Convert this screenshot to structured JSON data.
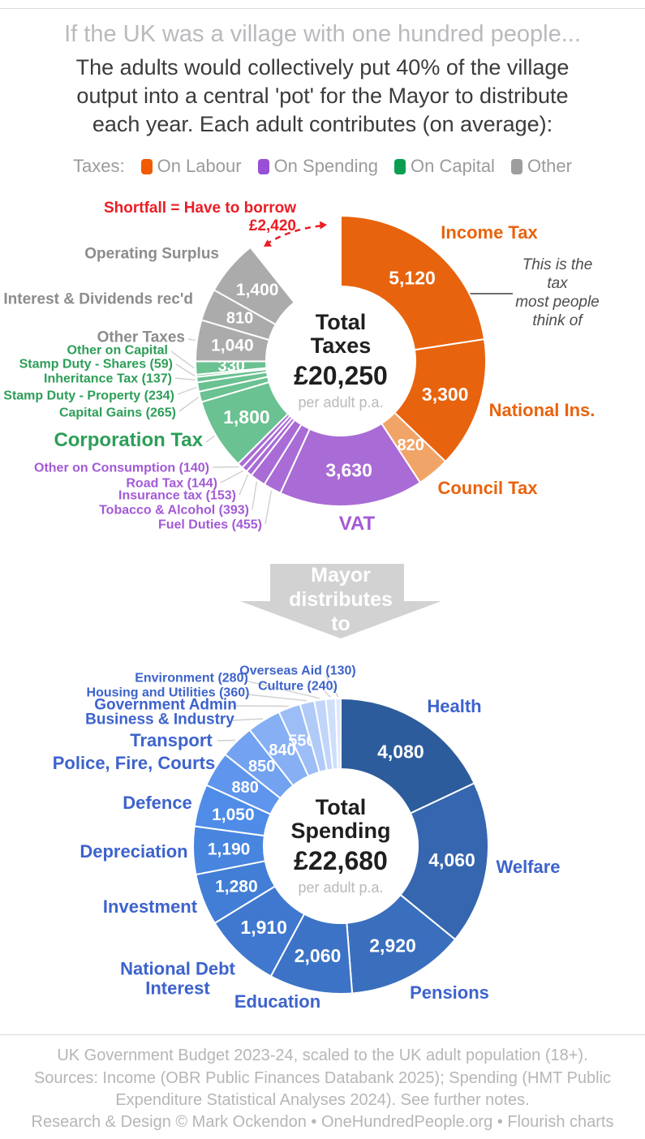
{
  "header": {
    "title": "If the UK was a village with one hundred people...",
    "subtitle": "The adults would collectively put 40% of the village\noutput into a central 'pot' for the Mayor to distribute\neach year. Each adult contributes (on average):"
  },
  "legend": {
    "prefix": "Taxes:",
    "items": [
      {
        "label": "On Labour",
        "color": "#F25B05"
      },
      {
        "label": "On Spending",
        "color": "#9750D6"
      },
      {
        "label": "On Capital",
        "color": "#0B9E51"
      },
      {
        "label": "Other",
        "color": "#9E9E9E"
      }
    ]
  },
  "chart_data": [
    {
      "type": "pie",
      "title": "Total Taxes",
      "center": {
        "title": "Total\nTaxes",
        "amount": "£20,250",
        "note": "per adult p.a."
      },
      "unit": "pounds per adult per year",
      "shortfall_gap": {
        "text": "Shortfall = Have to borrow\n£2,420",
        "value": 2420,
        "color": "#EC1C24"
      },
      "income_note": {
        "text": "This is the tax\nmost people\nthink of"
      },
      "slices": [
        {
          "label": "Income Tax",
          "value": 5120,
          "display": "5,120",
          "color": "#E8630D",
          "label_color": "#E8630D",
          "show_value_inside": true
        },
        {
          "label": "National Ins.",
          "value": 3300,
          "display": "3,300",
          "color": "#E8630D",
          "label_color": "#E8630D",
          "show_value_inside": true
        },
        {
          "label": "Council Tax",
          "value": 820,
          "display": "820",
          "color": "#F1A467",
          "label_color": "#E8630D",
          "show_value_inside": true
        },
        {
          "label": "VAT",
          "value": 3630,
          "display": "3,630",
          "color": "#A96BD5",
          "label_color": "#A35AD6",
          "show_value_inside": true
        },
        {
          "label": "Fuel Duties",
          "value": 455,
          "display": "455",
          "color": "#A96BD5",
          "label_color": "#A35AD6",
          "show_value_inside": false
        },
        {
          "label": "Tobacco & Alcohol",
          "value": 393,
          "display": "393",
          "color": "#A96BD5",
          "label_color": "#A35AD6",
          "show_value_inside": false
        },
        {
          "label": "Insurance tax",
          "value": 153,
          "display": "153",
          "color": "#A96BD5",
          "label_color": "#A35AD6",
          "show_value_inside": false
        },
        {
          "label": "Road Tax",
          "value": 144,
          "display": "144",
          "color": "#A96BD5",
          "label_color": "#A35AD6",
          "show_value_inside": false
        },
        {
          "label": "Other on Consumption",
          "value": 140,
          "display": "140",
          "color": "#A96BD5",
          "label_color": "#A35AD6",
          "show_value_inside": false
        },
        {
          "label": "Corporation Tax",
          "value": 1800,
          "display": "1,800",
          "color": "#6AC191",
          "label_color": "#2D9E58",
          "show_value_inside": true
        },
        {
          "label": "Capital Gains",
          "value": 265,
          "display": "265",
          "color": "#6AC191",
          "label_color": "#2D9E58",
          "show_value_inside": false
        },
        {
          "label": "Stamp Duty - Property",
          "value": 234,
          "display": "234",
          "color": "#6AC191",
          "label_color": "#2D9E58",
          "show_value_inside": false
        },
        {
          "label": "Inheritance Tax",
          "value": 137,
          "display": "137",
          "color": "#6AC191",
          "label_color": "#2D9E58",
          "show_value_inside": false
        },
        {
          "label": "Stamp Duty - Shares",
          "value": 59,
          "display": "59",
          "color": "#6AC191",
          "label_color": "#2D9E58",
          "show_value_inside": false
        },
        {
          "label": "Other on Capital",
          "value": 330,
          "display": "330",
          "color": "#6AC191",
          "label_color": "#2D9E58",
          "show_value_inside": true
        },
        {
          "label": "Other Taxes",
          "value": 1040,
          "display": "1,040",
          "color": "#ABABAB",
          "label_color": "#8C8C8C",
          "show_value_inside": true
        },
        {
          "label": "Interest & Dividends rec'd",
          "value": 810,
          "display": "810",
          "color": "#ABABAB",
          "label_color": "#8C8C8C",
          "show_value_inside": true
        },
        {
          "label": "Operating Surplus",
          "value": 1400,
          "display": "1,400",
          "color": "#ABABAB",
          "label_color": "#8C8C8C",
          "show_value_inside": true
        }
      ]
    },
    {
      "type": "pie",
      "title": "Total Spending",
      "center": {
        "title": "Total\nSpending",
        "amount": "£22,680",
        "note": "per adult p.a."
      },
      "unit": "pounds per adult per year",
      "slices": [
        {
          "label": "Health",
          "value": 4080,
          "display": "4,080",
          "color": "#2D5C9C",
          "label_color": "#3D63CC",
          "show_value_inside": true
        },
        {
          "label": "Welfare",
          "value": 4060,
          "display": "4,060",
          "color": "#3566AF",
          "label_color": "#3D63CC",
          "show_value_inside": true
        },
        {
          "label": "Pensions",
          "value": 2920,
          "display": "2,920",
          "color": "#3A6FBE",
          "label_color": "#3D63CC",
          "show_value_inside": true
        },
        {
          "label": "Education",
          "value": 2060,
          "display": "2,060",
          "color": "#3C73C6",
          "label_color": "#3D63CC",
          "show_value_inside": true
        },
        {
          "label": "National Debt Interest",
          "value": 1910,
          "display": "1,910",
          "color": "#3F78CE",
          "label_color": "#3D63CC",
          "show_value_inside": true
        },
        {
          "label": "Investment",
          "value": 1280,
          "display": "1,280",
          "color": "#427ED6",
          "label_color": "#3D63CC",
          "show_value_inside": true
        },
        {
          "label": "Depreciation",
          "value": 1190,
          "display": "1,190",
          "color": "#4785DF",
          "label_color": "#3D63CC",
          "show_value_inside": true
        },
        {
          "label": "Defence",
          "value": 1050,
          "display": "1,050",
          "color": "#4E8CE7",
          "label_color": "#3D63CC",
          "show_value_inside": true
        },
        {
          "label": "Police, Fire, Courts",
          "value": 880,
          "display": "880",
          "color": "#5F95EC",
          "label_color": "#3D63CC",
          "show_value_inside": true
        },
        {
          "label": "Transport",
          "value": 850,
          "display": "850",
          "color": "#73A2F0",
          "label_color": "#3D63CC",
          "show_value_inside": true
        },
        {
          "label": "Business & Industry",
          "value": 840,
          "display": "840",
          "color": "#87AFF3",
          "label_color": "#3D63CC",
          "show_value_inside": true
        },
        {
          "label": "Government Admin",
          "value": 550,
          "display": "550",
          "color": "#9CBDF6",
          "label_color": "#3D63CC",
          "show_value_inside": true
        },
        {
          "label": "Housing and Utilities",
          "value": 360,
          "display": "360",
          "color": "#B1CBF8",
          "label_color": "#3D63CC",
          "show_value_inside": false
        },
        {
          "label": "Environment",
          "value": 280,
          "display": "280",
          "color": "#C1D5FA",
          "label_color": "#3D63CC",
          "show_value_inside": false
        },
        {
          "label": "Culture",
          "value": 240,
          "display": "240",
          "color": "#CEDFFC",
          "label_color": "#3D63CC",
          "show_value_inside": false
        },
        {
          "label": "Overseas Aid",
          "value": 130,
          "display": "130",
          "color": "#DDE8FD",
          "label_color": "#3D63CC",
          "show_value_inside": false
        }
      ]
    }
  ],
  "connector": {
    "text": "Mayor\ndistributes\nto"
  },
  "footer": {
    "lines": [
      "UK Government Budget 2023-24, scaled to the UK adult population (18+).",
      "Sources: Income (OBR Public Finances Databank 2025); Spending (HMT Public",
      "Expenditure Statistical Analyses 2024). See further notes.",
      "Research & Design © Mark Ockendon • OneHundredPeople.org • Flourish charts"
    ]
  }
}
